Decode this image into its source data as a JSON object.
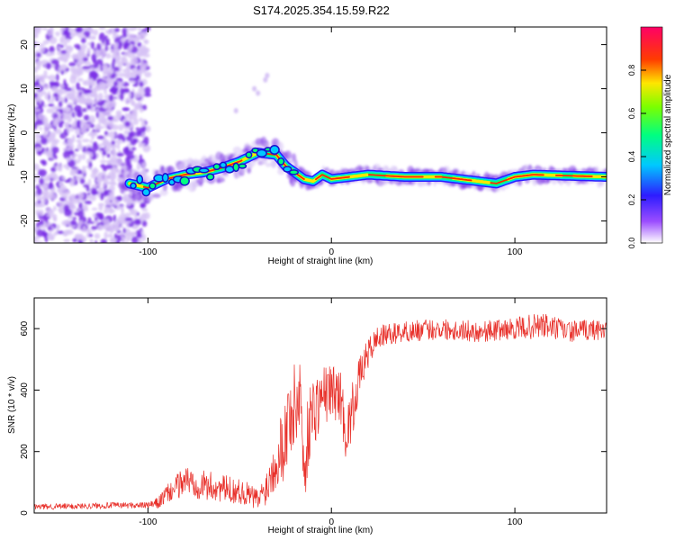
{
  "colors": {
    "noise": "#7b2fe6",
    "noise_light": "#d6c2f5",
    "snr_line": "#e8302a",
    "axis": "#000000"
  },
  "chart_data": [
    {
      "type": "heatmap",
      "title": "S174.2025.354.15.59.R22",
      "xlabel": "Height of straight line (km)",
      "ylabel": "Frequency (Hz)",
      "xlim": [
        -162,
        150
      ],
      "ylim": [
        -25,
        24
      ],
      "xticks": [
        -100,
        0,
        100
      ],
      "xtick_labels": [
        "-100",
        "0",
        "100"
      ],
      "yticks": [
        20,
        10,
        0,
        -10,
        -20
      ],
      "ytick_labels": [
        "20",
        "10",
        "0",
        "-10",
        "-20"
      ],
      "colorbar": {
        "label": "Normalized spectral amplitude",
        "range": [
          0,
          1
        ],
        "ticks": [
          0.0,
          0.2,
          0.4,
          0.6,
          0.8
        ],
        "tick_labels": [
          "0.0",
          "0.2",
          "0.4",
          "0.6",
          "0.8"
        ]
      },
      "signal_trace": [
        {
          "x": -110,
          "f": -11.5
        },
        {
          "x": -100,
          "f": -12.5
        },
        {
          "x": -90,
          "f": -10.5
        },
        {
          "x": -80,
          "f": -9.5
        },
        {
          "x": -70,
          "f": -9
        },
        {
          "x": -60,
          "f": -8
        },
        {
          "x": -50,
          "f": -6.5
        },
        {
          "x": -40,
          "f": -4.5
        },
        {
          "x": -30,
          "f": -5
        },
        {
          "x": -25,
          "f": -7.5
        },
        {
          "x": -20,
          "f": -9
        },
        {
          "x": -15,
          "f": -10.5
        },
        {
          "x": -10,
          "f": -11
        },
        {
          "x": -5,
          "f": -9.5
        },
        {
          "x": 0,
          "f": -10.5
        },
        {
          "x": 10,
          "f": -10
        },
        {
          "x": 20,
          "f": -9.5
        },
        {
          "x": 40,
          "f": -10
        },
        {
          "x": 60,
          "f": -10
        },
        {
          "x": 80,
          "f": -11
        },
        {
          "x": 90,
          "f": -11.5
        },
        {
          "x": 100,
          "f": -10
        },
        {
          "x": 110,
          "f": -9.5
        },
        {
          "x": 150,
          "f": -10
        }
      ]
    },
    {
      "type": "line",
      "xlabel": "Height of straight line (km)",
      "ylabel": "SNR (10 * v/v)",
      "xlim": [
        -162,
        150
      ],
      "ylim": [
        0,
        700
      ],
      "xticks": [
        -100,
        0,
        100
      ],
      "xtick_labels": [
        "-100",
        "0",
        "100"
      ],
      "yticks": [
        0,
        200,
        400,
        600
      ],
      "ytick_labels": [
        "0",
        "200",
        "400",
        "600"
      ],
      "series": [
        {
          "name": "SNR",
          "x": [
            -162,
            -140,
            -120,
            -100,
            -95,
            -90,
            -85,
            -80,
            -75,
            -70,
            -65,
            -60,
            -55,
            -50,
            -45,
            -40,
            -35,
            -30,
            -25,
            -22,
            -20,
            -17,
            -15,
            -12,
            -10,
            -5,
            0,
            5,
            8,
            10,
            12,
            15,
            20,
            25,
            30,
            40,
            60,
            80,
            100,
            115,
            130,
            150
          ],
          "values": [
            20,
            22,
            25,
            25,
            30,
            60,
            80,
            110,
            100,
            90,
            85,
            80,
            75,
            70,
            60,
            40,
            90,
            180,
            250,
            350,
            320,
            420,
            120,
            300,
            330,
            380,
            400,
            380,
            250,
            300,
            350,
            440,
            520,
            570,
            580,
            590,
            600,
            590,
            600,
            610,
            590,
            600
          ],
          "noise": [
            10,
            10,
            10,
            10,
            20,
            30,
            40,
            50,
            50,
            50,
            50,
            45,
            45,
            40,
            40,
            40,
            60,
            100,
            140,
            180,
            160,
            140,
            120,
            130,
            120,
            100,
            90,
            90,
            80,
            90,
            90,
            60,
            50,
            40,
            35,
            35,
            35,
            35,
            35,
            45,
            35,
            35
          ]
        }
      ]
    }
  ]
}
